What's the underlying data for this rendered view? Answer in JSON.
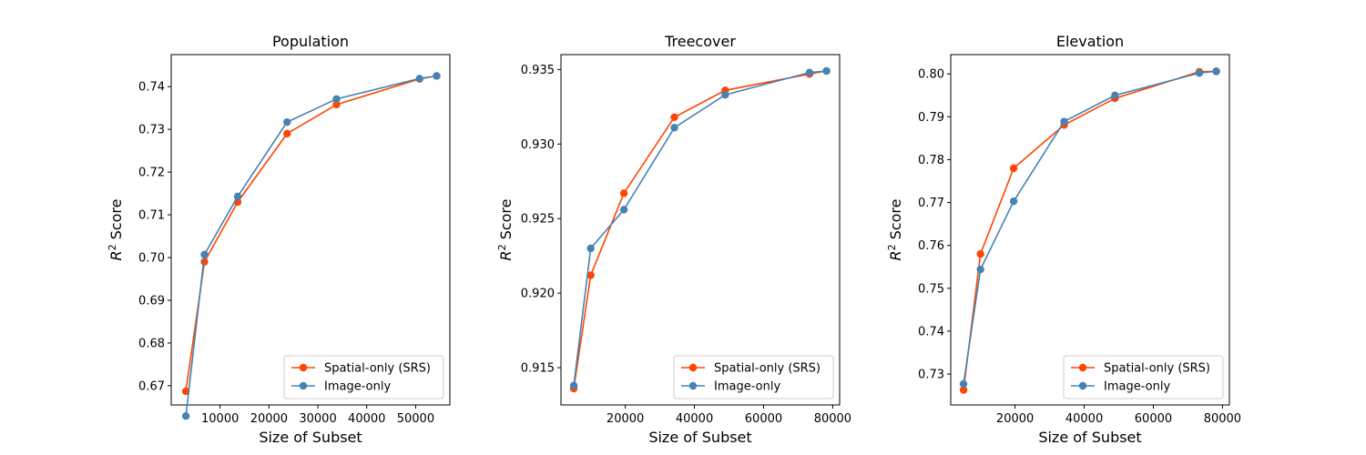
{
  "chart_data": [
    {
      "type": "line",
      "title": "Population",
      "xlabel": "Size of Subset",
      "ylabel_main": "R",
      "ylabel_sup": "2",
      "ylabel_rest": " Score",
      "xlim": [
        0,
        57000
      ],
      "ylim": [
        0.6655,
        0.7475
      ],
      "xticks": [
        10000,
        20000,
        30000,
        40000,
        50000
      ],
      "xtick_labels": [
        "10000",
        "20000",
        "30000",
        "40000",
        "50000"
      ],
      "yticks": [
        0.67,
        0.68,
        0.69,
        0.7,
        0.71,
        0.72,
        0.73,
        0.74
      ],
      "ytick_labels": [
        "0.67",
        "0.68",
        "0.69",
        "0.70",
        "0.71",
        "0.72",
        "0.73",
        "0.74"
      ],
      "legend_position": "lower-right",
      "series": [
        {
          "name": "Spatial-only (SRS)",
          "color": "#ff4500",
          "x": [
            3000,
            6800,
            13600,
            23700,
            33800,
            50800,
            54300
          ],
          "y": [
            0.6687,
            0.699,
            0.713,
            0.729,
            0.7358,
            0.7418,
            0.7425
          ]
        },
        {
          "name": "Image-only",
          "color": "#4682b4",
          "x": [
            3000,
            6800,
            13600,
            23700,
            33800,
            50800,
            54300
          ],
          "y": [
            0.6629,
            0.7007,
            0.7143,
            0.7317,
            0.7371,
            0.7419,
            0.7425
          ]
        }
      ]
    },
    {
      "type": "line",
      "title": "Treecover",
      "xlabel": "Size of Subset",
      "ylabel_main": "R",
      "ylabel_sup": "2",
      "ylabel_rest": " Score",
      "xlim": [
        1400,
        82000
      ],
      "ylim": [
        0.9125,
        0.936
      ],
      "xticks": [
        20000,
        40000,
        60000,
        80000
      ],
      "xtick_labels": [
        "20000",
        "40000",
        "60000",
        "80000"
      ],
      "yticks": [
        0.915,
        0.92,
        0.925,
        0.93,
        0.935
      ],
      "ytick_labels": [
        "0.915",
        "0.920",
        "0.925",
        "0.930",
        "0.935"
      ],
      "legend_position": "lower-right",
      "series": [
        {
          "name": "Spatial-only (SRS)",
          "color": "#ff4500",
          "x": [
            5100,
            10000,
            19600,
            34200,
            48900,
            73300,
            78200
          ],
          "y": [
            0.9136,
            0.9212,
            0.9267,
            0.9318,
            0.9336,
            0.9347,
            0.9349
          ]
        },
        {
          "name": "Image-only",
          "color": "#4682b4",
          "x": [
            5100,
            10000,
            19600,
            34200,
            48900,
            73300,
            78200
          ],
          "y": [
            0.9138,
            0.923,
            0.9256,
            0.9311,
            0.9333,
            0.9348,
            0.9349
          ]
        }
      ]
    },
    {
      "type": "line",
      "title": "Elevation",
      "xlabel": "Size of Subset",
      "ylabel_main": "R",
      "ylabel_sup": "2",
      "ylabel_rest": " Score",
      "xlim": [
        1400,
        82000
      ],
      "ylim": [
        0.7228,
        0.8045
      ],
      "xticks": [
        20000,
        40000,
        60000,
        80000
      ],
      "xtick_labels": [
        "20000",
        "40000",
        "60000",
        "80000"
      ],
      "yticks": [
        0.73,
        0.74,
        0.75,
        0.76,
        0.77,
        0.78,
        0.79,
        0.8
      ],
      "ytick_labels": [
        "0.73",
        "0.74",
        "0.75",
        "0.76",
        "0.77",
        "0.78",
        "0.79",
        "0.80"
      ],
      "legend_position": "lower-right",
      "series": [
        {
          "name": "Spatial-only (SRS)",
          "color": "#ff4500",
          "x": [
            5100,
            10000,
            19600,
            34200,
            48900,
            73300,
            78200
          ],
          "y": [
            0.7263,
            0.758,
            0.778,
            0.7881,
            0.7943,
            0.8005,
            0.8006
          ]
        },
        {
          "name": "Image-only",
          "color": "#4682b4",
          "x": [
            5100,
            10000,
            19600,
            34200,
            48900,
            73300,
            78200
          ],
          "y": [
            0.7277,
            0.7544,
            0.7703,
            0.7889,
            0.795,
            0.8002,
            0.8006
          ]
        }
      ]
    }
  ]
}
